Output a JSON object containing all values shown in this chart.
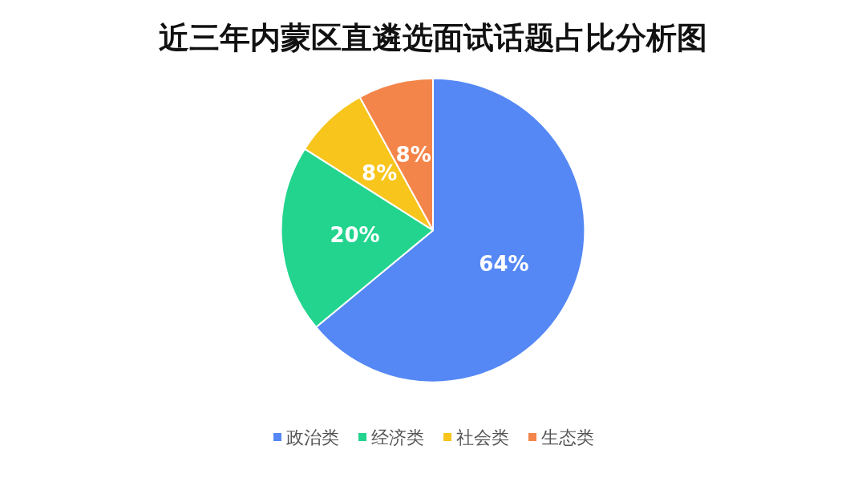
{
  "chart_data": {
    "type": "pie",
    "title": "近三年内蒙区直遴选面试话题占比分析图",
    "categories": [
      "政治类",
      "经济类",
      "社会类",
      "生态类"
    ],
    "values": [
      64,
      20,
      8,
      8
    ],
    "colors": [
      "#5588f5",
      "#22d48e",
      "#f7c51c",
      "#f4854a"
    ],
    "value_labels": [
      "64%",
      "20%",
      "8%",
      "8%"
    ],
    "legend": "bottom"
  }
}
